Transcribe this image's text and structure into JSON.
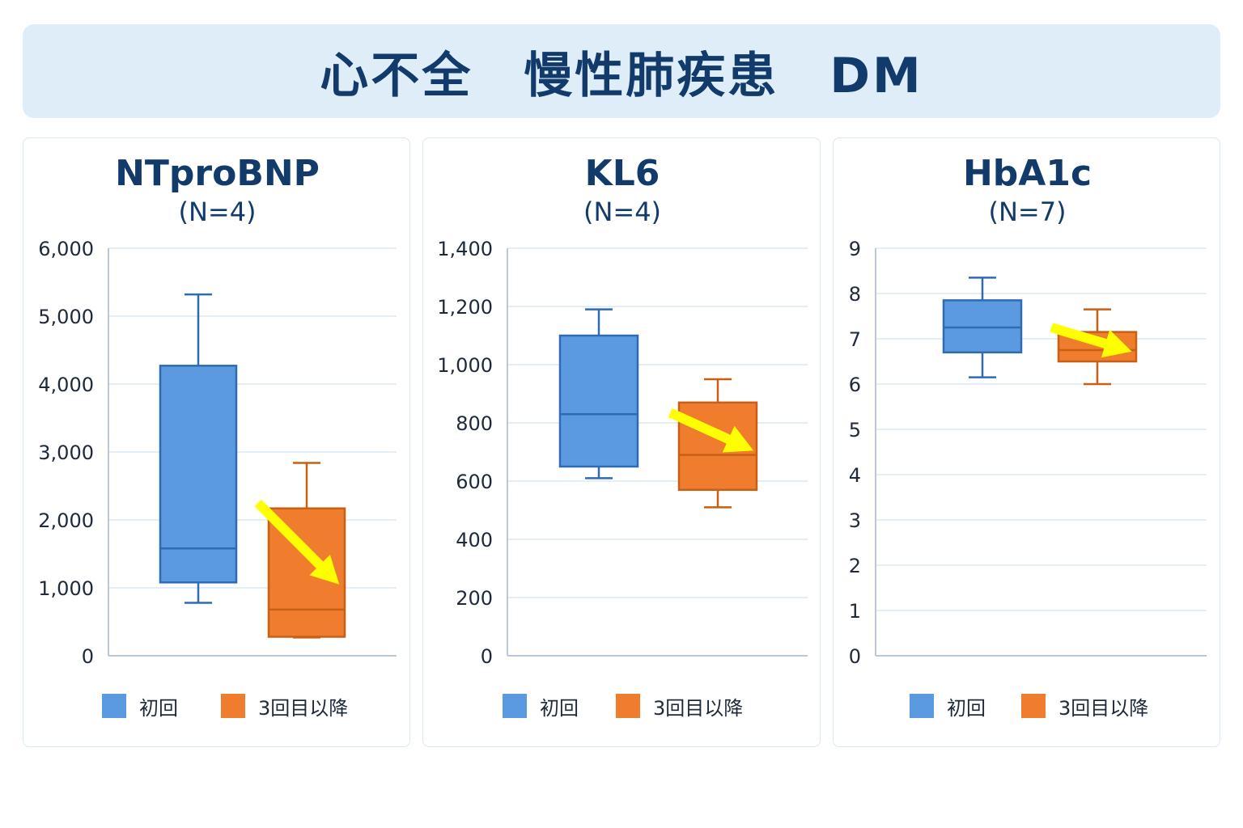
{
  "banner": {
    "title": "心不全　慢性肺疾患　DM"
  },
  "colors": {
    "initial": "#5b9ae0",
    "initial_edge": "#2f6bb3",
    "later": "#ef7d2d",
    "later_edge": "#c95f15",
    "arrow": "#ffff00",
    "grid": "#dde8f2",
    "axis": "#b9c9d9"
  },
  "legend": {
    "initial": "初回",
    "later": "3回目以降"
  },
  "chart_data": [
    {
      "type": "box",
      "title": "NTproBNP",
      "subtitle": "(N=4)",
      "ylim": [
        0,
        6000
      ],
      "yticks": [
        0,
        1000,
        2000,
        3000,
        4000,
        5000,
        6000
      ],
      "ytick_labels": [
        "0",
        "1,000",
        "2,000",
        "3,000",
        "4,000",
        "5,000",
        "6,000"
      ],
      "series": [
        {
          "name": "初回",
          "whisker_low": 780,
          "q1": 1080,
          "median": 1580,
          "q3": 4270,
          "whisker_high": 5320
        },
        {
          "name": "3回目以降",
          "whisker_low": 270,
          "q1": 280,
          "median": 680,
          "q3": 2170,
          "whisker_high": 2840
        }
      ],
      "arrow": {
        "from": [
          0.55,
          2250
        ],
        "to": [
          1.3,
          1050
        ]
      }
    },
    {
      "type": "box",
      "title": "KL6",
      "subtitle": "(N=4)",
      "ylim": [
        0,
        1400
      ],
      "yticks": [
        0,
        200,
        400,
        600,
        800,
        1000,
        1200,
        1400
      ],
      "ytick_labels": [
        "0",
        "200",
        "400",
        "600",
        "800",
        "1,000",
        "1,200",
        "1,400"
      ],
      "series": [
        {
          "name": "初回",
          "whisker_low": 610,
          "q1": 650,
          "median": 830,
          "q3": 1100,
          "whisker_high": 1190
        },
        {
          "name": "3回目以降",
          "whisker_low": 510,
          "q1": 570,
          "median": 690,
          "q3": 870,
          "whisker_high": 950
        }
      ],
      "arrow": {
        "from": [
          0.6,
          835
        ],
        "to": [
          1.3,
          705
        ]
      }
    },
    {
      "type": "box",
      "title": "HbA1c",
      "subtitle": "(N=7)",
      "ylim": [
        0,
        9
      ],
      "yticks": [
        0,
        1,
        2,
        3,
        4,
        5,
        6,
        7,
        8,
        9
      ],
      "ytick_labels": [
        "0",
        "1",
        "2",
        "3",
        "4",
        "5",
        "6",
        "7",
        "8",
        "9"
      ],
      "series": [
        {
          "name": "初回",
          "whisker_low": 6.15,
          "q1": 6.7,
          "median": 7.25,
          "q3": 7.85,
          "whisker_high": 8.35
        },
        {
          "name": "3回目以降",
          "whisker_low": 6.0,
          "q1": 6.5,
          "median": 6.75,
          "q3": 7.15,
          "whisker_high": 7.65
        }
      ],
      "arrow": {
        "from": [
          0.6,
          7.25
        ],
        "to": [
          1.3,
          6.72
        ]
      }
    }
  ]
}
